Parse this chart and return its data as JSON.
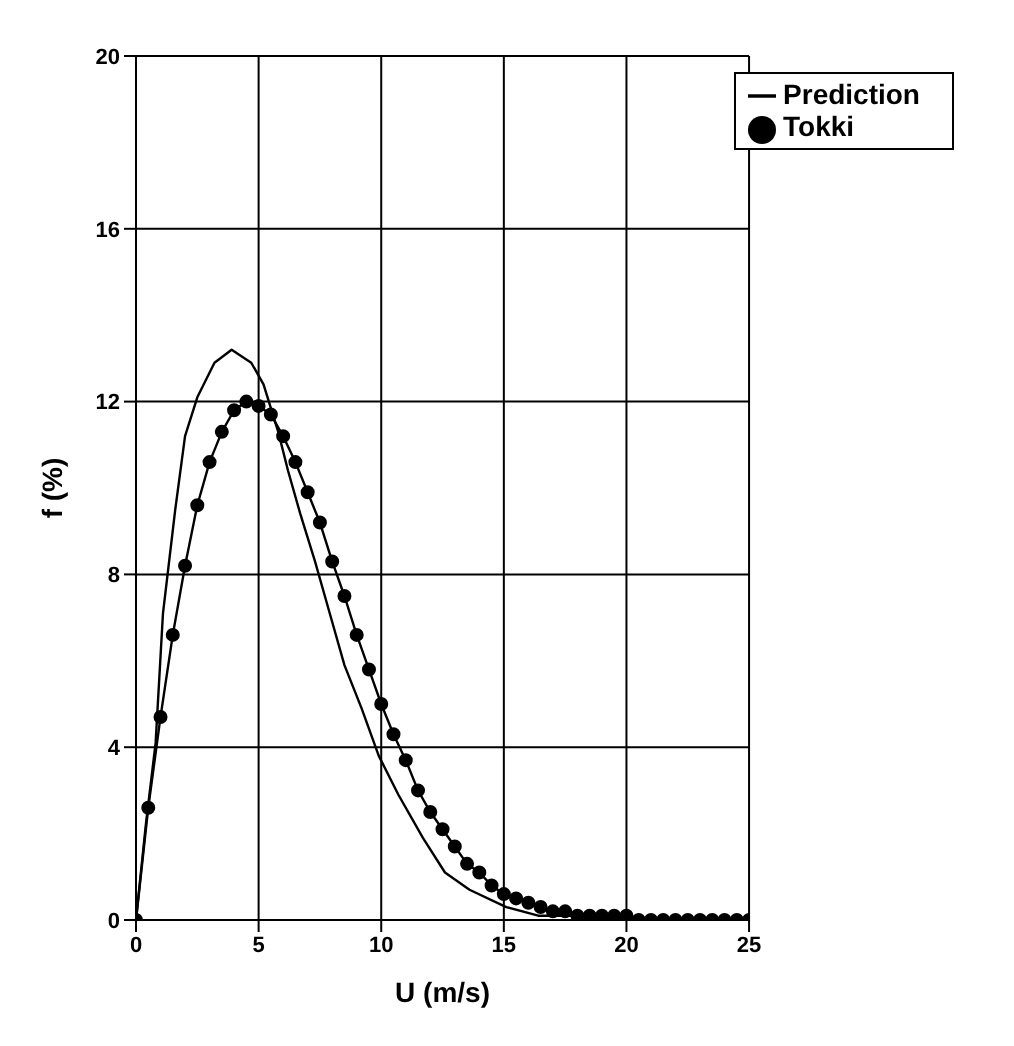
{
  "chart_data": {
    "type": "line",
    "xlabel": "U (m/s)",
    "ylabel": "f (%)",
    "xlim": [
      0,
      25
    ],
    "xticks": [
      0,
      5,
      10,
      15,
      20,
      25
    ],
    "ylim": [
      0,
      20
    ],
    "yticks": [
      0,
      4,
      8,
      12,
      16,
      20
    ],
    "grid": true,
    "legend": "top right",
    "line_style": "solid",
    "series": [
      {
        "name": "Tokki",
        "color": "#000000",
        "marker": "circle",
        "x": [
          0,
          0.5,
          1,
          1.5,
          2,
          2.5,
          3,
          3.5,
          4,
          4.5,
          5,
          5.5,
          6,
          6.5,
          7,
          7.5,
          8,
          8.5,
          9,
          9.5,
          10,
          10.5,
          11,
          11.5,
          12,
          12.5,
          13,
          13.5,
          14,
          14.5,
          15,
          15.5,
          16,
          16.5,
          17,
          17.5,
          18,
          18.5,
          19,
          19.5,
          20,
          20.5,
          21,
          21.5,
          22,
          22.5,
          23,
          23.5,
          24,
          24.5,
          25
        ],
        "values": [
          0,
          2.6,
          4.7,
          6.6,
          8.2,
          9.6,
          10.6,
          11.3,
          11.8,
          12,
          11.9,
          11.7,
          11.2,
          10.6,
          9.9,
          9.2,
          8.3,
          7.5,
          6.6,
          5.8,
          5,
          4.3,
          3.7,
          3,
          2.5,
          2.1,
          1.7,
          1.3,
          1.1,
          0.8,
          0.6,
          0.5,
          0.4,
          0.3,
          0.2,
          0.2,
          0.1,
          0.1,
          0.1,
          0.1,
          0.1,
          0,
          0,
          0,
          0,
          0,
          0,
          0,
          0,
          0,
          0
        ]
      },
      {
        "name": "Prediction",
        "color": "#000000",
        "marker": "none",
        "x": [
          0,
          0.4,
          0.8,
          1.1,
          1.6,
          2,
          2.5,
          3.2,
          3.9,
          4.7,
          5.2,
          5.8,
          6.2,
          6.7,
          7.3,
          7.9,
          8.5,
          9.2,
          9.9,
          10.7,
          11.7,
          12.6,
          13.6,
          15.1,
          16.4,
          18.3,
          20,
          22,
          25
        ],
        "values": [
          0,
          2.2,
          4.1,
          7.1,
          9.5,
          11.2,
          12.1,
          12.9,
          13.2,
          12.9,
          12.4,
          11.3,
          10.4,
          9.4,
          8.3,
          7.1,
          5.9,
          4.9,
          3.8,
          2.9,
          1.9,
          1.1,
          0.7,
          0.3,
          0.1,
          0.1,
          0,
          0,
          0
        ]
      }
    ]
  }
}
